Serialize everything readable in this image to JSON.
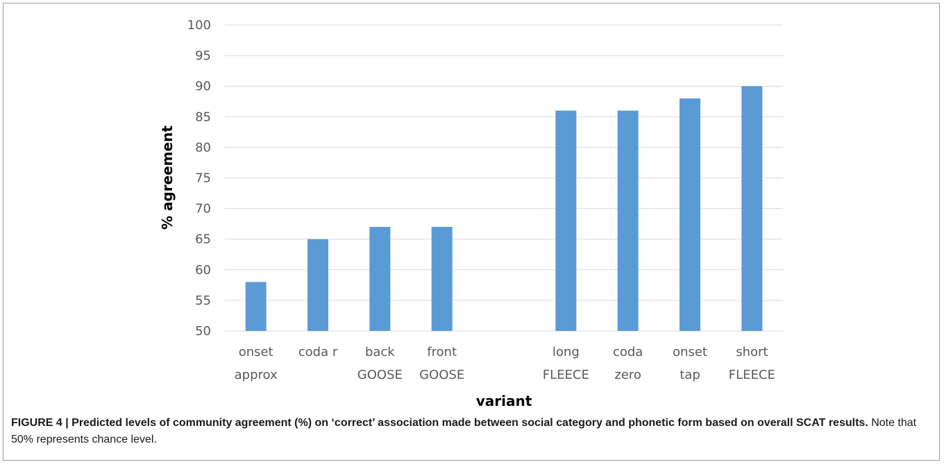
{
  "caption": {
    "label": "FIGURE 4 | Predicted levels of community agreement (%) on ‘correct’ association made between social category and phonetic form based on overall SCAT results.",
    "note": "Note that 50% represents chance level."
  },
  "chart_data": {
    "type": "bar",
    "xlabel": "variant",
    "ylabel": "% agreement",
    "ylim": [
      50,
      100
    ],
    "yticks": [
      50,
      55,
      60,
      65,
      70,
      75,
      80,
      85,
      90,
      95,
      100
    ],
    "grid": true,
    "bar_color": "#5b9bd5",
    "categories": [
      {
        "line1": "onset",
        "line2": "approx",
        "value": 58
      },
      {
        "line1": "coda r",
        "line2": "",
        "value": 65
      },
      {
        "line1": "back",
        "line2": "GOOSE",
        "value": 67
      },
      {
        "line1": "front",
        "line2": "GOOSE",
        "value": 67
      },
      {
        "line1": "",
        "line2": "",
        "value": null
      },
      {
        "line1": "long",
        "line2": "FLEECE",
        "value": 86
      },
      {
        "line1": "coda",
        "line2": "zero",
        "value": 86
      },
      {
        "line1": "onset",
        "line2": "tap",
        "value": 88
      },
      {
        "line1": "short",
        "line2": "FLEECE",
        "value": 90
      }
    ]
  }
}
